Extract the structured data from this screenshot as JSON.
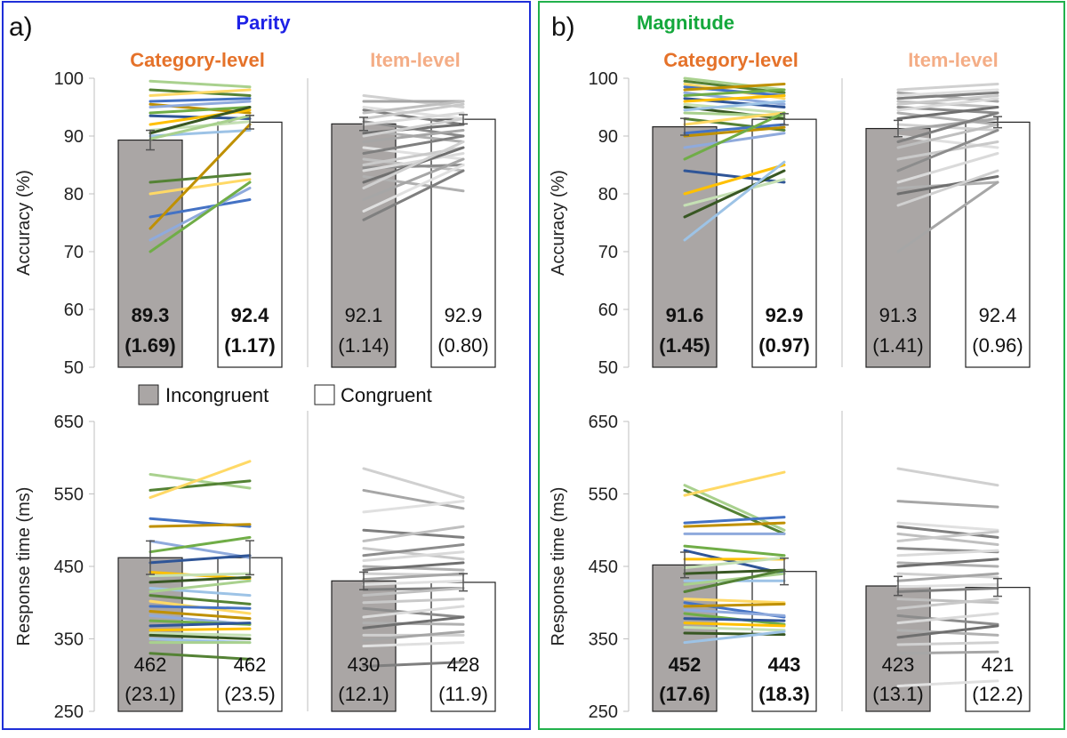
{
  "legend": {
    "incongruent": "Incongruent",
    "congruent": "Congruent"
  },
  "colors": {
    "parity_frame": "#1f2fd8",
    "magnitude_frame": "#22b14c",
    "parity_title": "#1e22e6",
    "magnitude_title": "#14a83c",
    "category_header": "#e5722a",
    "item_header": "#f4ad86",
    "incongruent_bar": "#aaa6a5",
    "congruent_bar": "#ffffff"
  },
  "panels": [
    {
      "letter": "a)",
      "title": "Parity",
      "subtitles": [
        "Category-level",
        "Item-level"
      ]
    },
    {
      "letter": "b)",
      "title": "Magnitude",
      "subtitles": [
        "Category-level",
        "Item-level"
      ]
    }
  ],
  "chart_data": [
    {
      "type": "bar",
      "panel": "a",
      "title": "Parity",
      "subtitle": "Category-level",
      "ylabel": "Accuracy (%)",
      "ylim": [
        50,
        100
      ],
      "yticks": [
        50,
        60,
        70,
        80,
        90,
        100
      ],
      "categories": [
        "Incongruent",
        "Congruent"
      ],
      "values": [
        89.3,
        92.4
      ],
      "se": [
        1.69,
        1.17
      ],
      "value_labels": [
        "89.3",
        "92.4"
      ],
      "se_labels": [
        "(1.69)",
        "(1.17)"
      ],
      "bold": true,
      "lines_palette": "colored",
      "lines": [
        [
          99.5,
          98.5
        ],
        [
          98,
          97
        ],
        [
          97,
          98
        ],
        [
          96,
          96.5
        ],
        [
          95.5,
          94
        ],
        [
          95,
          96
        ],
        [
          94,
          95
        ],
        [
          93.5,
          93
        ],
        [
          92,
          94.5
        ],
        [
          91,
          92.5
        ],
        [
          90.5,
          95
        ],
        [
          90,
          91
        ],
        [
          89.5,
          93.5
        ],
        [
          82,
          83.5
        ],
        [
          80,
          82.5
        ],
        [
          76,
          79
        ],
        [
          74,
          92
        ],
        [
          72,
          81
        ],
        [
          70,
          82
        ]
      ]
    },
    {
      "type": "bar",
      "panel": "a",
      "title": "Parity",
      "subtitle": "Item-level",
      "ylabel": "",
      "ylim": [
        50,
        100
      ],
      "yticks": [
        50,
        60,
        70,
        80,
        90,
        100
      ],
      "categories": [
        "Incongruent",
        "Congruent"
      ],
      "values": [
        92.1,
        92.9
      ],
      "se": [
        1.14,
        0.8
      ],
      "value_labels": [
        "92.1",
        "92.9"
      ],
      "se_labels": [
        "(1.14)",
        "(0.80)"
      ],
      "bold": false,
      "lines_palette": "gray",
      "lines": [
        [
          97,
          95
        ],
        [
          96,
          96
        ],
        [
          95,
          93
        ],
        [
          94.5,
          92
        ],
        [
          94,
          96
        ],
        [
          93,
          95.5
        ],
        [
          92.5,
          90
        ],
        [
          92,
          94
        ],
        [
          91,
          89
        ],
        [
          90.5,
          92
        ],
        [
          90,
          93
        ],
        [
          89,
          91
        ],
        [
          88,
          86
        ],
        [
          87,
          90
        ],
        [
          86,
          84
        ],
        [
          85,
          88
        ],
        [
          84.5,
          85
        ],
        [
          84,
          87
        ],
        [
          83,
          80.5
        ],
        [
          82,
          88
        ],
        [
          81,
          89
        ],
        [
          79,
          86
        ],
        [
          77,
          85
        ],
        [
          75.5,
          84
        ]
      ]
    },
    {
      "type": "bar",
      "panel": "a",
      "title": "Parity",
      "subtitle": "Category-level",
      "ylabel": "Response time (ms)",
      "ylim": [
        250,
        650
      ],
      "yticks": [
        250,
        350,
        450,
        550,
        650
      ],
      "categories": [
        "Incongruent",
        "Congruent"
      ],
      "values": [
        462,
        462
      ],
      "se": [
        23.1,
        23.5
      ],
      "value_labels": [
        "462",
        "462"
      ],
      "se_labels": [
        "(23.1)",
        "(23.5)"
      ],
      "bold": false,
      "lines_palette": "colored",
      "lines": [
        [
          577,
          558
        ],
        [
          555,
          568
        ],
        [
          545,
          595
        ],
        [
          516,
          505
        ],
        [
          505,
          508
        ],
        [
          485,
          462
        ],
        [
          470,
          490
        ],
        [
          455,
          465
        ],
        [
          442,
          433
        ],
        [
          437,
          440
        ],
        [
          428,
          435
        ],
        [
          420,
          410
        ],
        [
          415,
          430
        ],
        [
          410,
          398
        ],
        [
          402,
          385
        ],
        [
          395,
          392
        ],
        [
          388,
          378
        ],
        [
          382,
          370
        ],
        [
          375,
          370
        ],
        [
          368,
          372
        ],
        [
          362,
          364
        ],
        [
          358,
          355
        ],
        [
          355,
          350
        ],
        [
          350,
          345
        ],
        [
          345,
          345
        ],
        [
          330,
          322
        ]
      ]
    },
    {
      "type": "bar",
      "panel": "a",
      "title": "Parity",
      "subtitle": "Item-level",
      "ylabel": "",
      "ylim": [
        250,
        650
      ],
      "yticks": [
        250,
        350,
        450,
        550,
        650
      ],
      "categories": [
        "Incongruent",
        "Congruent"
      ],
      "values": [
        430,
        428
      ],
      "se": [
        12.1,
        11.9
      ],
      "value_labels": [
        "430",
        "428"
      ],
      "se_labels": [
        "(12.1)",
        "(11.9)"
      ],
      "bold": false,
      "lines_palette": "gray",
      "lines": [
        [
          585,
          545
        ],
        [
          555,
          530
        ],
        [
          525,
          540
        ],
        [
          500,
          490
        ],
        [
          485,
          505
        ],
        [
          475,
          460
        ],
        [
          465,
          480
        ],
        [
          458,
          470
        ],
        [
          450,
          445
        ],
        [
          445,
          455
        ],
        [
          440,
          438
        ],
        [
          432,
          440
        ],
        [
          425,
          430
        ],
        [
          418,
          420
        ],
        [
          410,
          420
        ],
        [
          400,
          405
        ],
        [
          392,
          380
        ],
        [
          380,
          395
        ],
        [
          372,
          370
        ],
        [
          365,
          380
        ],
        [
          355,
          355
        ],
        [
          348,
          360
        ],
        [
          340,
          345
        ],
        [
          312,
          318
        ]
      ]
    },
    {
      "type": "bar",
      "panel": "b",
      "title": "Magnitude",
      "subtitle": "Category-level",
      "ylabel": "Accuracy (%)",
      "ylim": [
        50,
        100
      ],
      "yticks": [
        50,
        60,
        70,
        80,
        90,
        100
      ],
      "categories": [
        "Incongruent",
        "Congruent"
      ],
      "values": [
        91.6,
        92.9
      ],
      "se": [
        1.45,
        0.97
      ],
      "value_labels": [
        "91.6",
        "92.9"
      ],
      "se_labels": [
        "(1.45)",
        "(0.97)"
      ],
      "bold": true,
      "lines_palette": "colored",
      "lines": [
        [
          100,
          98
        ],
        [
          99.5,
          97.5
        ],
        [
          99,
          96.5
        ],
        [
          98.5,
          97
        ],
        [
          98,
          99
        ],
        [
          97.5,
          95.5
        ],
        [
          97,
          98
        ],
        [
          96.5,
          95
        ],
        [
          96,
          97
        ],
        [
          95.5,
          94
        ],
        [
          95,
          93
        ],
        [
          94.5,
          96
        ],
        [
          94,
          93.5
        ],
        [
          93,
          91
        ],
        [
          92,
          94
        ],
        [
          90.5,
          92
        ],
        [
          90,
          91.5
        ],
        [
          88,
          90.5
        ],
        [
          86,
          94
        ],
        [
          84,
          82
        ],
        [
          80,
          85
        ],
        [
          78,
          82.5
        ],
        [
          76,
          84
        ],
        [
          72,
          85.5
        ]
      ]
    },
    {
      "type": "bar",
      "panel": "b",
      "title": "Magnitude",
      "subtitle": "Item-level",
      "ylabel": "",
      "ylim": [
        50,
        100
      ],
      "yticks": [
        50,
        60,
        70,
        80,
        90,
        100
      ],
      "categories": [
        "Incongruent",
        "Congruent"
      ],
      "values": [
        91.3,
        92.4
      ],
      "se": [
        1.41,
        0.96
      ],
      "value_labels": [
        "91.3",
        "92.4"
      ],
      "se_labels": [
        "(1.41)",
        "(0.96)"
      ],
      "bold": false,
      "lines_palette": "gray",
      "lines": [
        [
          98,
          99
        ],
        [
          97.5,
          96
        ],
        [
          97,
          98
        ],
        [
          96.5,
          97.5
        ],
        [
          96,
          95
        ],
        [
          95.5,
          97
        ],
        [
          95,
          94
        ],
        [
          94.5,
          96.5
        ],
        [
          94,
          92
        ],
        [
          93,
          95
        ],
        [
          92,
          91
        ],
        [
          91,
          93
        ],
        [
          90,
          88
        ],
        [
          89,
          94
        ],
        [
          88,
          92
        ],
        [
          86,
          89
        ],
        [
          84,
          91
        ],
        [
          82,
          87
        ],
        [
          81,
          82
        ],
        [
          80,
          83
        ],
        [
          78,
          84
        ],
        [
          70,
          82
        ]
      ]
    },
    {
      "type": "bar",
      "panel": "b",
      "title": "Magnitude",
      "subtitle": "Category-level",
      "ylabel": "Response time (ms)",
      "ylim": [
        250,
        650
      ],
      "yticks": [
        250,
        350,
        450,
        550,
        650
      ],
      "categories": [
        "Incongruent",
        "Congruent"
      ],
      "values": [
        452,
        443
      ],
      "se": [
        17.6,
        18.3
      ],
      "value_labels": [
        "452",
        "443"
      ],
      "se_labels": [
        "(17.6)",
        "(18.3)"
      ],
      "bold": true,
      "lines_palette": "colored",
      "lines": [
        [
          562,
          500
        ],
        [
          555,
          495
        ],
        [
          548,
          580
        ],
        [
          510,
          518
        ],
        [
          505,
          510
        ],
        [
          495,
          495
        ],
        [
          478,
          465
        ],
        [
          472,
          440
        ],
        [
          460,
          460
        ],
        [
          448,
          462
        ],
        [
          440,
          445
        ],
        [
          430,
          430
        ],
        [
          425,
          440
        ],
        [
          415,
          445
        ],
        [
          405,
          400
        ],
        [
          400,
          380
        ],
        [
          395,
          398
        ],
        [
          390,
          382
        ],
        [
          385,
          370
        ],
        [
          378,
          375
        ],
        [
          372,
          368
        ],
        [
          366,
          362
        ],
        [
          358,
          356
        ],
        [
          345,
          360
        ]
      ]
    },
    {
      "type": "bar",
      "panel": "b",
      "title": "Magnitude",
      "subtitle": "Item-level",
      "ylabel": "",
      "ylim": [
        250,
        650
      ],
      "yticks": [
        250,
        350,
        450,
        550,
        650
      ],
      "categories": [
        "Incongruent",
        "Congruent"
      ],
      "values": [
        423,
        421
      ],
      "se": [
        13.1,
        12.2
      ],
      "value_labels": [
        "423",
        "421"
      ],
      "se_labels": [
        "(13.1)",
        "(12.2)"
      ],
      "bold": false,
      "lines_palette": "gray",
      "lines": [
        [
          585,
          562
        ],
        [
          540,
          532
        ],
        [
          510,
          500
        ],
        [
          505,
          490
        ],
        [
          495,
          480
        ],
        [
          485,
          498
        ],
        [
          475,
          470
        ],
        [
          465,
          472
        ],
        [
          455,
          450
        ],
        [
          450,
          460
        ],
        [
          440,
          435
        ],
        [
          430,
          440
        ],
        [
          422,
          425
        ],
        [
          415,
          420
        ],
        [
          405,
          400
        ],
        [
          392,
          405
        ],
        [
          382,
          370
        ],
        [
          372,
          385
        ],
        [
          362,
          355
        ],
        [
          352,
          368
        ],
        [
          342,
          345
        ],
        [
          330,
          332
        ],
        [
          285,
          292
        ]
      ]
    }
  ]
}
